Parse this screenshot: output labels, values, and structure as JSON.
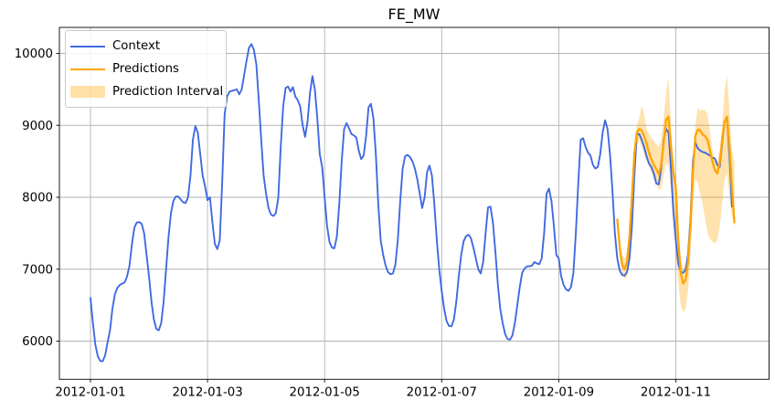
{
  "title": "FE_MW",
  "legend": {
    "context_label": "Context",
    "predictions_label": "Predictions",
    "interval_label": "Prediction Interval"
  },
  "colors": {
    "context": "#4169e1",
    "predictions": "#ffa500",
    "interval": "#ffa500",
    "interval_opacity": 0.32,
    "grid": "#b3b3b3",
    "spine": "#1a1a1a",
    "text": "#000000",
    "background": "#ffffff"
  },
  "chart_data": {
    "type": "line",
    "title": "FE_MW",
    "xlabel": "",
    "ylabel": "",
    "x_unit": "hours since 2012-01-01 00:00",
    "xlim_hours": [
      -12.7,
      278.2
    ],
    "ylim": [
      5470,
      10360
    ],
    "grid": true,
    "legend_position": "upper left",
    "x_tick_hours": [
      0,
      48,
      96,
      144,
      192,
      240
    ],
    "x_tick_labels": [
      "2012-01-01",
      "2012-01-03",
      "2012-01-05",
      "2012-01-07",
      "2012-01-09",
      "2012-01-11"
    ],
    "y_ticks": [
      6000,
      7000,
      8000,
      9000,
      10000
    ],
    "series": [
      {
        "name": "Context",
        "type": "line",
        "color": "#4169e1",
        "start_hour": 0,
        "step_hours": 1,
        "values": [
          6600,
          6250,
          5950,
          5790,
          5725,
          5720,
          5800,
          5980,
          6150,
          6450,
          6650,
          6740,
          6780,
          6800,
          6815,
          6900,
          7050,
          7350,
          7580,
          7650,
          7655,
          7630,
          7500,
          7200,
          6900,
          6550,
          6300,
          6170,
          6150,
          6250,
          6550,
          7000,
          7450,
          7780,
          7950,
          8010,
          8010,
          7970,
          7930,
          7920,
          8000,
          8300,
          8800,
          8990,
          8900,
          8600,
          8300,
          8150,
          7960,
          8000,
          7650,
          7350,
          7280,
          7400,
          8200,
          9150,
          9400,
          9470,
          9480,
          9490,
          9500,
          9430,
          9500,
          9700,
          9900,
          10080,
          10130,
          10050,
          9850,
          9350,
          8800,
          8300,
          8050,
          7850,
          7760,
          7740,
          7780,
          7990,
          8700,
          9260,
          9520,
          9540,
          9470,
          9530,
          9400,
          9350,
          9260,
          9000,
          8840,
          9050,
          9450,
          9685,
          9500,
          9100,
          8600,
          8420,
          8000,
          7600,
          7380,
          7300,
          7290,
          7450,
          7900,
          8500,
          8950,
          9030,
          8960,
          8880,
          8860,
          8830,
          8650,
          8530,
          8580,
          8850,
          9250,
          9300,
          9100,
          8600,
          7900,
          7400,
          7200,
          7050,
          6960,
          6930,
          6940,
          7060,
          7400,
          7950,
          8400,
          8570,
          8590,
          8560,
          8500,
          8400,
          8250,
          8050,
          7850,
          8000,
          8350,
          8440,
          8300,
          7900,
          7400,
          7000,
          6700,
          6450,
          6280,
          6210,
          6205,
          6300,
          6550,
          6900,
          7200,
          7390,
          7460,
          7480,
          7430,
          7300,
          7150,
          7000,
          6940,
          7100,
          7500,
          7860,
          7870,
          7650,
          7250,
          6800,
          6450,
          6250,
          6100,
          6030,
          6020,
          6080,
          6250,
          6500,
          6750,
          6950,
          7010,
          7040,
          7040,
          7050,
          7100,
          7080,
          7070,
          7150,
          7500,
          8050,
          8120,
          7950,
          7600,
          7200,
          7150,
          6900,
          6780,
          6720,
          6700,
          6750,
          6950,
          7500,
          8200,
          8800,
          8820,
          8700,
          8620,
          8580,
          8450,
          8400,
          8420,
          8600,
          8900,
          9070,
          8950,
          8600,
          8100,
          7500,
          7150,
          6980,
          6920,
          6910,
          6960,
          7150,
          7600,
          8300,
          8870,
          8880,
          8800,
          8700,
          8570,
          8470,
          8420,
          8330,
          8190,
          8180,
          8400,
          8800,
          8950,
          8900,
          8400,
          7800,
          7400,
          7080,
          6960,
          6950,
          6990,
          7200,
          7700,
          8500,
          8760,
          8680,
          8650,
          8630,
          8620,
          8600,
          8580,
          8550,
          8540,
          8450,
          8420,
          8750,
          9060,
          9095,
          8550,
          7870
        ]
      },
      {
        "name": "Predictions",
        "type": "line",
        "color": "#ffa500",
        "start_hour": 216,
        "step_hours": 1,
        "values": [
          7690,
          7300,
          7060,
          7000,
          7100,
          7450,
          8000,
          8600,
          8900,
          8950,
          8930,
          8850,
          8750,
          8620,
          8520,
          8450,
          8390,
          8320,
          8450,
          8750,
          9080,
          9120,
          8700,
          8350,
          8140,
          7400,
          6950,
          6800,
          6850,
          7100,
          7600,
          8350,
          8850,
          8940,
          8930,
          8870,
          8850,
          8800,
          8650,
          8500,
          8380,
          8330,
          8480,
          8800,
          9050,
          9120,
          8700,
          8150,
          7650
        ]
      },
      {
        "name": "Prediction Interval",
        "type": "band",
        "color": "#ffa500",
        "opacity": 0.32,
        "start_hour": 216,
        "step_hours": 1,
        "upper": [
          7800,
          7400,
          7200,
          7150,
          7250,
          7600,
          8150,
          8750,
          9000,
          9100,
          9280,
          9150,
          8950,
          8880,
          8820,
          8780,
          8740,
          8700,
          8800,
          9100,
          9450,
          9660,
          9000,
          8500,
          8250,
          7600,
          7150,
          7000,
          7050,
          7350,
          7800,
          8500,
          9000,
          9250,
          9200,
          9220,
          9210,
          9150,
          8900,
          8650,
          8520,
          8500,
          8650,
          9000,
          9500,
          9700,
          9200,
          8650,
          8500
        ],
        "lower": [
          7580,
          7150,
          6950,
          6870,
          6900,
          7200,
          7700,
          8300,
          8700,
          8800,
          8700,
          8600,
          8500,
          8420,
          8350,
          8250,
          8180,
          8100,
          8120,
          8300,
          8470,
          8450,
          8100,
          7600,
          7250,
          6800,
          6500,
          6400,
          6450,
          6700,
          7200,
          7900,
          8250,
          8200,
          8050,
          7900,
          7700,
          7500,
          7420,
          7380,
          7360,
          7400,
          7600,
          7900,
          8250,
          8330,
          8000,
          7750,
          7580
        ]
      }
    ]
  }
}
